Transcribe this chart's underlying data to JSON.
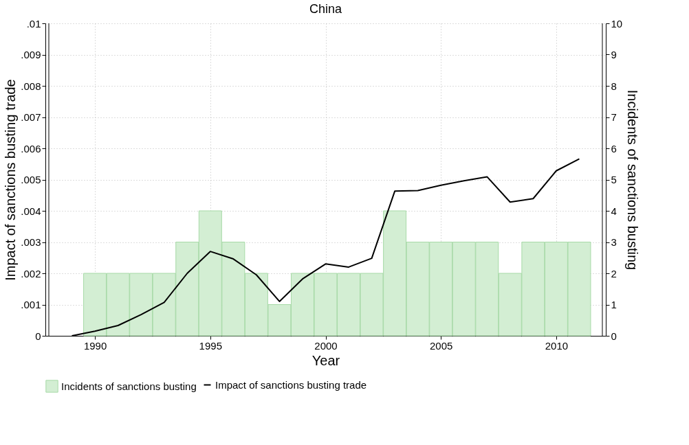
{
  "chart_data": {
    "type": "line",
    "title": "China",
    "xlabel": "Year",
    "ylabel": "Impact of sanctions busting trade",
    "y2label": "Incidents of sanctions busting",
    "xlim": [
      1988,
      2012
    ],
    "xticks": [
      1990,
      1995,
      2000,
      2005,
      2010
    ],
    "ylim": [
      0,
      0.01
    ],
    "yticks": [
      {
        "value": 0,
        "label": "0"
      },
      {
        "value": 0.001,
        "label": ".001"
      },
      {
        "value": 0.002,
        "label": ".002"
      },
      {
        "value": 0.003,
        "label": ".003"
      },
      {
        "value": 0.004,
        "label": ".004"
      },
      {
        "value": 0.005,
        "label": ".005"
      },
      {
        "value": 0.006,
        "label": ".006"
      },
      {
        "value": 0.007,
        "label": ".007"
      },
      {
        "value": 0.008,
        "label": ".008"
      },
      {
        "value": 0.009,
        "label": ".009"
      },
      {
        "value": 0.01,
        "label": ".01"
      }
    ],
    "y2lim": [
      0,
      10
    ],
    "y2ticks": [
      0,
      1,
      2,
      3,
      4,
      5,
      6,
      7,
      8,
      9,
      10
    ],
    "grid": true,
    "legend": "bottom",
    "series": [
      {
        "name": "Impact of sanctions busting trade",
        "color": "#000000",
        "x": [
          1989,
          1990,
          1991,
          1992,
          1993,
          1994,
          1995,
          1996,
          1997,
          1998,
          1999,
          2000,
          2001,
          2002,
          2003,
          2004,
          2005,
          2006,
          2007,
          2008,
          2009,
          2010,
          2011
        ],
        "values": [
          0,
          0.00015,
          0.00033,
          0.00068,
          0.00107,
          0.002,
          0.0027,
          0.00246,
          0.00195,
          0.0011,
          0.00182,
          0.0023,
          0.0022,
          0.00248,
          0.00463,
          0.00465,
          0.00482,
          0.00496,
          0.00509,
          0.00428,
          0.00439,
          0.00528,
          0.00566
        ]
      },
      {
        "name": "Incidents of sanctions busting",
        "type": "bar",
        "axis": "y2",
        "color": "#d3eed3",
        "x": [
          1990,
          1991,
          1992,
          1993,
          1994,
          1995,
          1996,
          1997,
          1998,
          1999,
          2000,
          2001,
          2002,
          2003,
          2004,
          2005,
          2006,
          2007,
          2008,
          2009,
          2010,
          2011
        ],
        "values": [
          2,
          2,
          2,
          2,
          3,
          4,
          3,
          2,
          1,
          2,
          2,
          2,
          2,
          4,
          3,
          3,
          3,
          3,
          2,
          3,
          3,
          3
        ]
      }
    ]
  }
}
